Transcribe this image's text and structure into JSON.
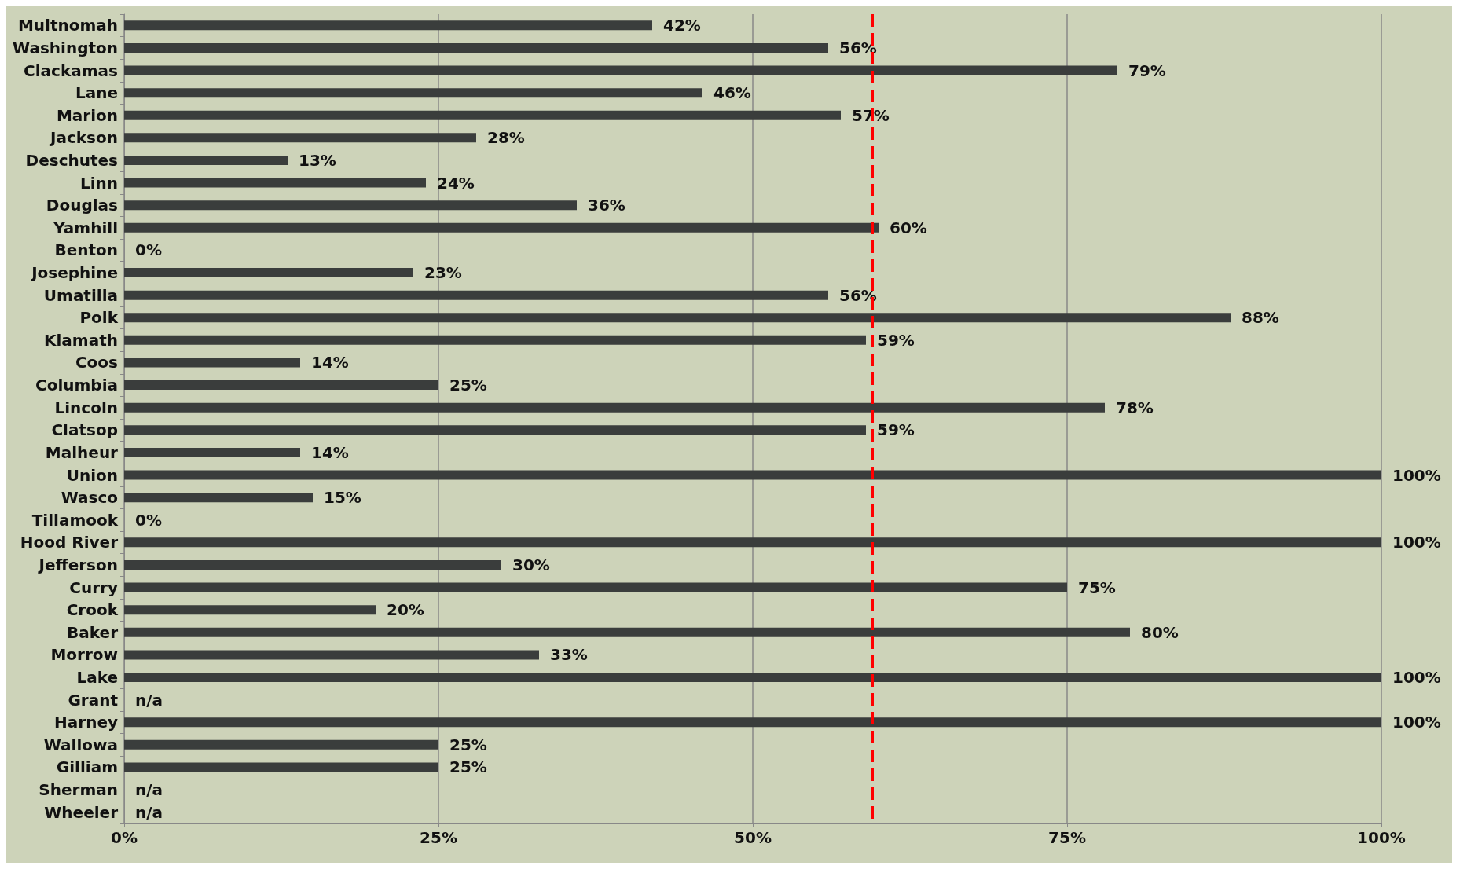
{
  "chart_data": {
    "type": "bar",
    "orientation": "horizontal",
    "categories": [
      "Multnomah",
      "Washington",
      "Clackamas",
      "Lane",
      "Marion",
      "Jackson",
      "Deschutes",
      "Linn",
      "Douglas",
      "Yamhill",
      "Benton",
      "Josephine",
      "Umatilla",
      "Polk",
      "Klamath",
      "Coos",
      "Columbia",
      "Lincoln",
      "Clatsop",
      "Malheur",
      "Union",
      "Wasco",
      "Tillamook",
      "Hood River",
      "Jefferson",
      "Curry",
      "Crook",
      "Baker",
      "Morrow",
      "Lake",
      "Grant",
      "Harney",
      "Wallowa",
      "Gilliam",
      "Sherman",
      "Wheeler"
    ],
    "values": [
      42,
      56,
      79,
      46,
      57,
      28,
      13,
      24,
      36,
      60,
      0,
      23,
      56,
      88,
      59,
      14,
      25,
      78,
      59,
      14,
      100,
      15,
      0,
      100,
      30,
      75,
      20,
      80,
      33,
      100,
      null,
      100,
      25,
      25,
      null,
      null
    ],
    "value_labels": [
      "42%",
      "56%",
      "79%",
      "46%",
      "57%",
      "28%",
      "13%",
      "24%",
      "36%",
      "60%",
      "0%",
      "23%",
      "56%",
      "88%",
      "59%",
      "14%",
      "25%",
      "78%",
      "59%",
      "14%",
      "100%",
      "15%",
      "0%",
      "100%",
      "30%",
      "75%",
      "20%",
      "80%",
      "33%",
      "100%",
      "n/a",
      "100%",
      "25%",
      "25%",
      "n/a",
      "n/a"
    ],
    "color": "#3a3d3c",
    "xlim": [
      0,
      100
    ],
    "xticks": [
      {
        "value": 0,
        "label": "0%"
      },
      {
        "value": 25,
        "label": "25%"
      },
      {
        "value": 50,
        "label": "50%"
      },
      {
        "value": 75,
        "label": "75%"
      },
      {
        "value": 100,
        "label": "100%"
      }
    ],
    "grid": "x",
    "ref_lines": [
      {
        "axis": "x",
        "value": 59.5,
        "color": "#ff0000",
        "line_style": "dashed"
      }
    ]
  }
}
